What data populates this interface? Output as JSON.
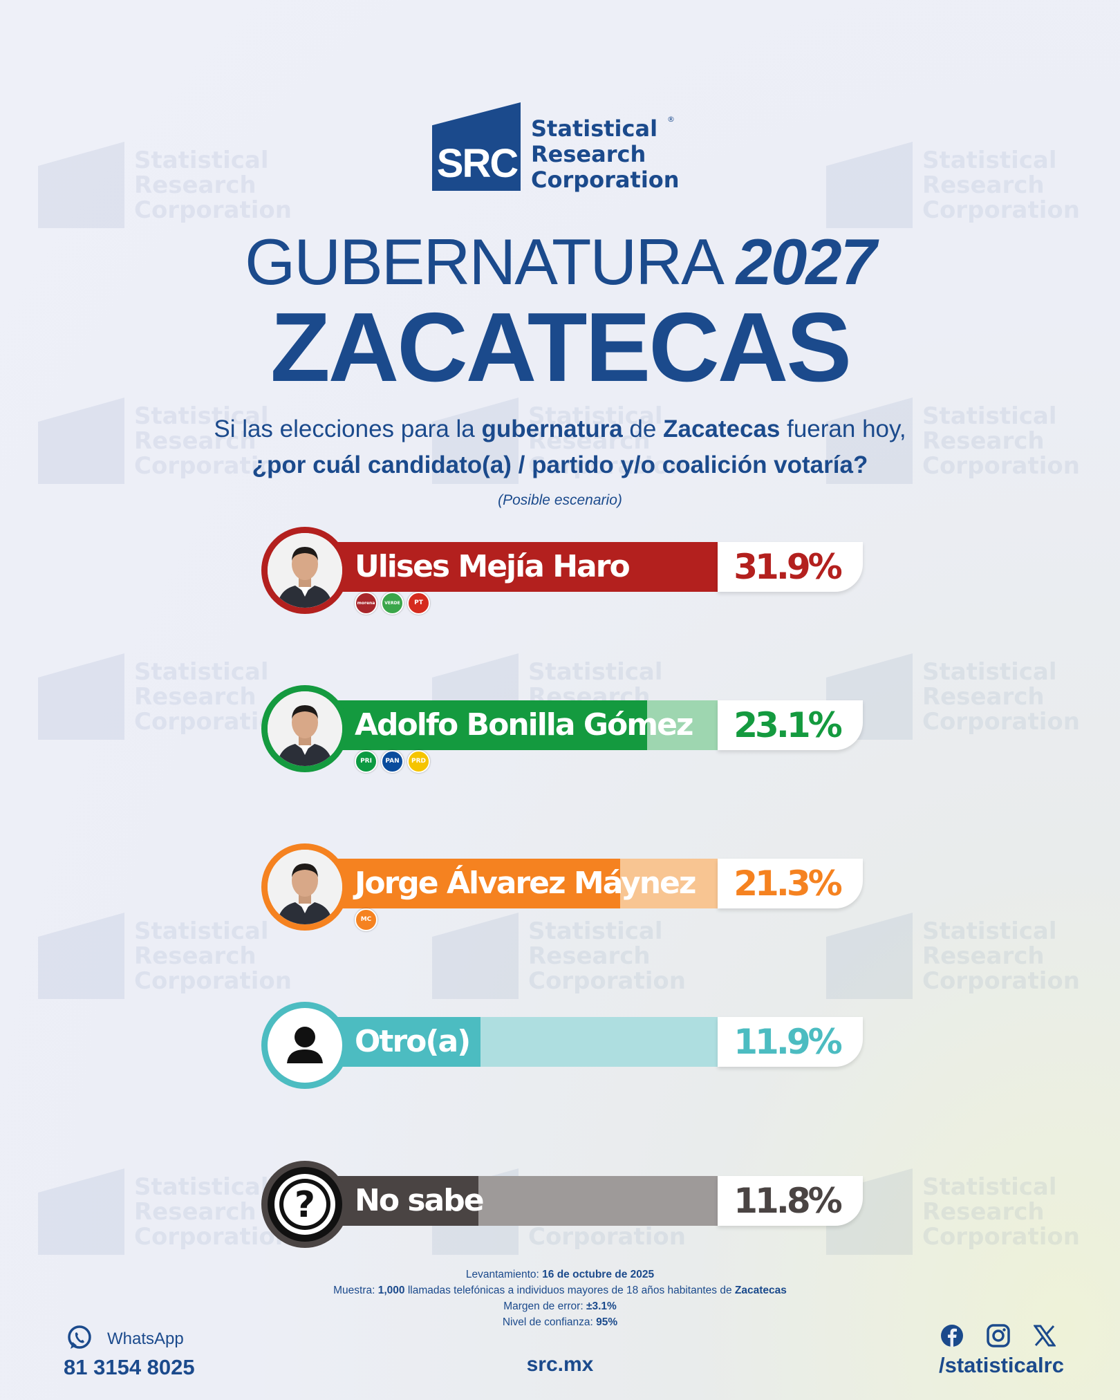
{
  "brand": {
    "mark": "SRC",
    "name_lines": [
      "Statistical",
      "Research",
      "Corporation"
    ],
    "registered": "®",
    "primary_color": "#1b4a8c"
  },
  "title": {
    "light": "GUBERNATURA",
    "year": "2027",
    "state": "ZACATECAS"
  },
  "question": {
    "l1_a": "Si las elecciones para la ",
    "l1_b": "gubernatura",
    "l1_c": " de ",
    "l1_d": "Zacatecas",
    "l1_e": " fueran hoy,",
    "l2": "¿por cuál candidato(a) / partido y/o coalición votaría?",
    "scenario": "(Posible escenario)"
  },
  "chart_data": {
    "type": "bar",
    "categories": [
      "Ulises Mejía Haro",
      "Adolfo Bonilla Gómez",
      "Jorge Álvarez Máynez",
      "Otro(a)",
      "No sabe"
    ],
    "values": [
      31.9,
      23.1,
      21.3,
      11.9,
      11.8
    ],
    "labels": [
      "31.9%",
      "23.1%",
      "21.3%",
      "11.9%",
      "11.8%"
    ],
    "colors": [
      "#b3201e",
      "#149a3f",
      "#f58220",
      "#4cbcc1",
      "#4a4443"
    ],
    "light_colors": [
      "#dba7aa",
      "#9ed6b0",
      "#f8c592",
      "#aedee0",
      "#9e9a99"
    ],
    "parties": [
      [
        "morena",
        "VERDE",
        "PT"
      ],
      [
        "PRI",
        "PAN",
        "PRD"
      ],
      [
        "MC"
      ],
      [],
      []
    ],
    "party_colors": [
      [
        "#a8262b",
        "#3aa64a",
        "#d52b1e"
      ],
      [
        "#0c9a42",
        "#0a4c9d",
        "#f5c400"
      ],
      [
        "#f58220"
      ],
      [],
      []
    ],
    "avatar_icons": [
      "candidate-photo",
      "candidate-photo",
      "candidate-photo",
      "person-icon",
      "question-icon"
    ],
    "xlim": [
      0,
      32
    ]
  },
  "footer": {
    "survey_label": "Levantamiento: ",
    "survey_date": "16 de octubre de 2025",
    "sample_label": "Muestra: ",
    "sample_n": "1,000",
    "sample_text": " llamadas telefónicas a individuos mayores de 18 años habitantes de ",
    "sample_place": "Zacatecas",
    "margin_label": "Margen de error: ",
    "margin_value": "±3.1%",
    "conf_label": "Nivel de confianza: ",
    "conf_value": "95%",
    "whatsapp_label": "WhatsApp",
    "whatsapp_number": "81 3154 8025",
    "site": "src.mx",
    "social_handle": "/statisticalrc"
  }
}
